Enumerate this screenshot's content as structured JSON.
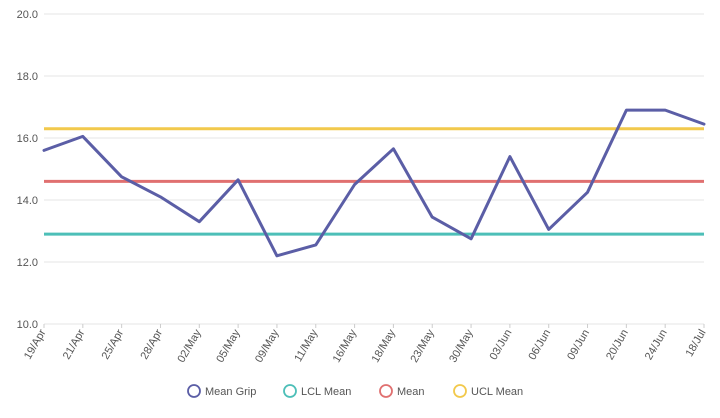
{
  "chart_data": {
    "type": "line",
    "title": "",
    "xlabel": "",
    "ylabel": "",
    "ylim": [
      10,
      20
    ],
    "y_ticks": [
      "10.0",
      "12.0",
      "14.0",
      "16.0",
      "18.0",
      "20.0"
    ],
    "grid": true,
    "legend_position": "bottom-center",
    "categories": [
      "19/Apr",
      "21/Apr",
      "25/Apr",
      "28/Apr",
      "02/May",
      "05/May",
      "09/May",
      "11/May",
      "16/May",
      "18/May",
      "23/May",
      "30/May",
      "03/Jun",
      "06/Jun",
      "09/Jun",
      "20/Jun",
      "24/Jun",
      "18/Jul"
    ],
    "series": [
      {
        "name": "Mean Grip",
        "color": "#5b5ea6",
        "style": "line",
        "values": [
          15.6,
          16.05,
          14.75,
          14.1,
          13.3,
          14.65,
          12.2,
          12.55,
          14.5,
          15.65,
          13.45,
          12.75,
          15.4,
          13.05,
          14.25,
          16.9,
          16.9,
          16.45
        ]
      },
      {
        "name": "LCL Mean",
        "color": "#4dbfb8",
        "style": "constant",
        "value": 12.9
      },
      {
        "name": "Mean",
        "color": "#e07070",
        "style": "constant",
        "value": 14.6
      },
      {
        "name": "UCL Mean",
        "color": "#f2c94c",
        "style": "constant",
        "value": 16.3
      }
    ]
  }
}
